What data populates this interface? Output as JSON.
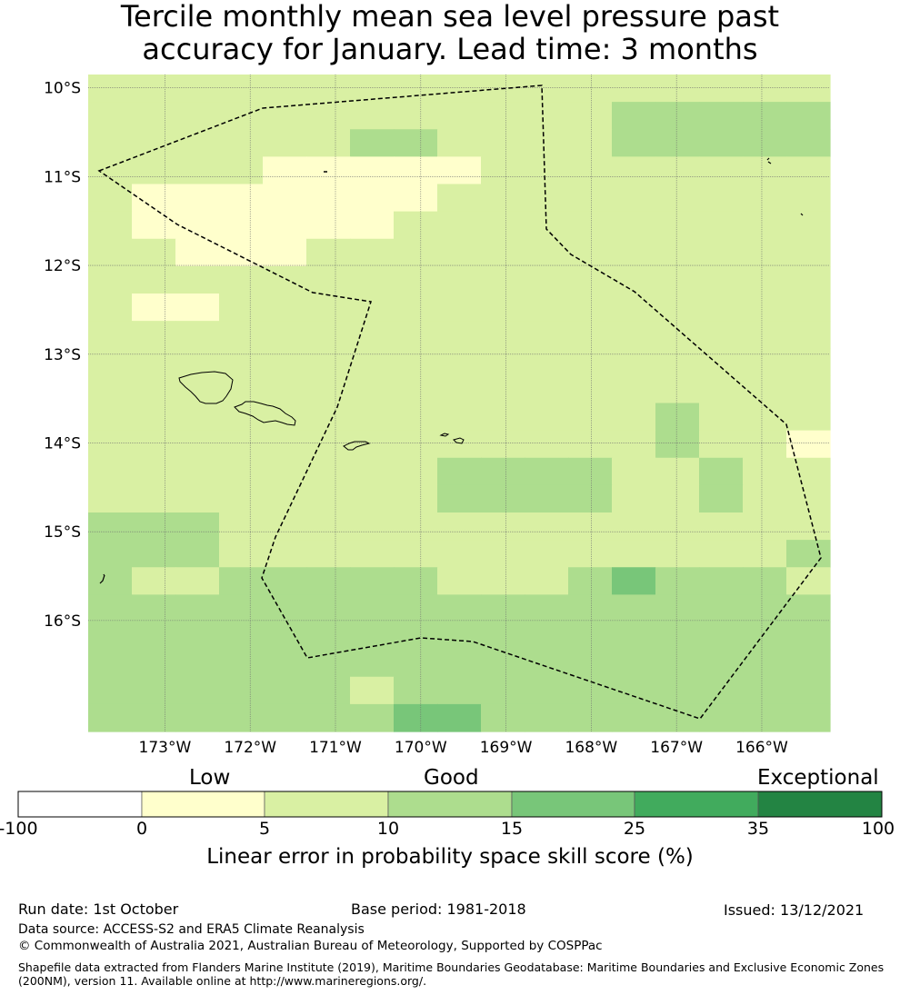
{
  "title": {
    "line1": "Tercile monthly mean sea level pressure past",
    "line2": "accuracy for January. Lead time: 3 months"
  },
  "map": {
    "lat_ticks": [
      "10°S",
      "11°S",
      "12°S",
      "13°S",
      "14°S",
      "15°S",
      "16°S"
    ],
    "lon_ticks": [
      "173°W",
      "172°W",
      "171°W",
      "170°W",
      "169°W",
      "168°W",
      "167°W",
      "166°W"
    ],
    "lat_values": [
      -10,
      -11,
      -12,
      -13,
      -14,
      -15,
      -16
    ],
    "lon_values": [
      -173,
      -172,
      -171,
      -170,
      -169,
      -168,
      -167,
      -166
    ],
    "boundary_style": "dashed",
    "grid": true
  },
  "colorbar": {
    "categories": [
      "Low",
      "Good",
      "Exceptional"
    ],
    "bounds": [
      "-100",
      "0",
      "5",
      "10",
      "15",
      "25",
      "35",
      "100"
    ],
    "colors": [
      "#ffffff",
      "#ffffcc",
      "#d9f0a3",
      "#addd8e",
      "#78c679",
      "#41ab5d",
      "#238443"
    ],
    "label": "Linear error in probability space skill score (%)"
  },
  "chart_data": {
    "type": "heatmap",
    "title": "Tercile monthly mean sea level pressure past accuracy for January. Lead time: 3 months",
    "xlabel": "",
    "ylabel": "",
    "value_unit": "Linear error in probability space skill score (%)",
    "value_bins": [
      "-100 to 0",
      "0 to 5",
      "5 to 10",
      "10 to 15",
      "15 to 25",
      "25 to 35",
      "35 to 100"
    ],
    "note_levels": "cell values are bin indices 0-6 of value_bins",
    "grid_rows": [
      "22222222222222222",
      "22222222222233333",
      "22222233222233333",
      "22221111122222222",
      "21111111222222222",
      "21111112222222222",
      "22111222222222222",
      "22222222222222222",
      "21122222222222222",
      "22222222222222222",
      "22222222222222222",
      "22222222222222222",
      "22222222222223222",
      "22222222222223221",
      "22222222333322322",
      "22222222333322322",
      "33322222222222222",
      "33322222222222223",
      "32233333222343332",
      "33333333333333333",
      "33333333333333333",
      "33333333333333333",
      "33333323333333333",
      "33333334433333333"
    ],
    "lat_range": [
      -17.25,
      -9.85
    ],
    "lon_range": [
      -173.9,
      -165.2
    ]
  },
  "footer": {
    "run_date": "Run date: 1st October",
    "base_period": "Base period: 1981-2018",
    "issued": "Issued: 13/12/2021",
    "data_source": "Data source: ACCESS-S2 and ERA5 Climate Reanalysis",
    "copyright": "© Commonwealth of Australia 2021, Australian Bureau of Meteorology, Supported by COSPPac",
    "shapefile_line1": "Shapefile data extracted from Flanders Marine Institute (2019), Maritime Boundaries Geodatabase: Maritime Boundaries and Exclusive Economic Zones",
    "shapefile_line2": "(200NM), version 11. Available online at http://www.marineregions.org/."
  }
}
